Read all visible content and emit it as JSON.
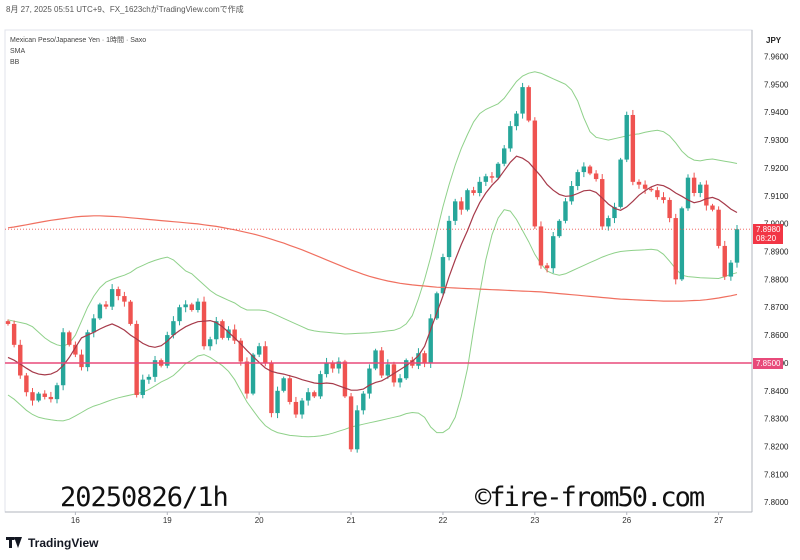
{
  "header": {
    "caption": "8月 27, 2025 05:51 UTC+9、FX_1623chがTradingView.comで作成"
  },
  "legend": {
    "symbol": "Mexican Peso/Japanese Yen · 1時間 · Saxo",
    "ind1": "SMA",
    "ind2": "BB"
  },
  "currency": "JPY",
  "overlay": {
    "date_text": "20250826/1h",
    "copyright_text": "©fire-from50.com"
  },
  "footer": {
    "brand": "TradingView",
    "logo_icon": "tradingview-logo-icon"
  },
  "price_tags": {
    "last": {
      "price": "7.8980",
      "countdown": "08:20",
      "color": "#f23645"
    },
    "level": {
      "price": "7.8500",
      "color": "#e84a7a"
    }
  },
  "colors": {
    "up": "#26a69a",
    "down": "#ef5350",
    "sma_fast": "#a63a4a",
    "sma_slow": "#f07060",
    "bb": "#8fd18a",
    "level_line": "#e84a7a"
  },
  "chart_data": {
    "type": "candlestick",
    "y_ticks": [
      "7.9600",
      "7.9500",
      "7.9400",
      "7.9300",
      "7.9200",
      "7.9100",
      "7.9000",
      "7.8900",
      "7.8800",
      "7.8700",
      "7.8600",
      "7.8500",
      "7.8400",
      "7.8300",
      "7.8200",
      "7.8100",
      "7.8000"
    ],
    "ylim": [
      7.7965,
      7.9695
    ],
    "x_ticks": [
      {
        "label": "16",
        "i": 11
      },
      {
        "label": "19",
        "i": 26
      },
      {
        "label": "20",
        "i": 41
      },
      {
        "label": "21",
        "i": 56
      },
      {
        "label": "22",
        "i": 71
      },
      {
        "label": "23",
        "i": 86
      },
      {
        "label": "26",
        "i": 101
      },
      {
        "label": "27",
        "i": 116
      }
    ],
    "n_bars": 120,
    "horizontal_level": 7.85,
    "close": [
      7.864,
      7.8565,
      7.8455,
      7.8395,
      7.8365,
      7.839,
      7.8378,
      7.837,
      7.842,
      7.861,
      7.8565,
      7.853,
      7.8485,
      7.861,
      7.866,
      7.871,
      7.8702,
      7.8765,
      7.874,
      7.872,
      7.864,
      7.8385,
      7.844,
      7.845,
      7.851,
      7.849,
      7.86,
      7.865,
      7.87,
      7.871,
      7.869,
      7.872,
      7.856,
      7.8585,
      7.865,
      7.859,
      7.862,
      7.858,
      7.8505,
      7.839,
      7.853,
      7.856,
      7.85,
      7.832,
      7.84,
      7.8445,
      7.836,
      7.8315,
      7.8365,
      7.8395,
      7.838,
      7.846,
      7.85,
      7.848,
      7.8505,
      7.838,
      7.819,
      7.833,
      7.839,
      7.848,
      7.8545,
      7.8455,
      7.8495,
      7.843,
      7.8445,
      7.851,
      7.849,
      7.8535,
      7.85,
      7.866,
      7.875,
      7.888,
      7.901,
      7.908,
      7.905,
      7.912,
      7.911,
      7.915,
      7.917,
      7.9165,
      7.9215,
      7.927,
      7.935,
      7.9395,
      7.949,
      7.937,
      7.899,
      7.885,
      7.884,
      7.8955,
      7.901,
      7.908,
      7.9135,
      7.9185,
      7.9205,
      7.918,
      7.916,
      7.899,
      7.902,
      7.906,
      7.923,
      7.939,
      7.915,
      7.914,
      7.9125,
      7.912,
      7.9095,
      7.9085,
      7.902,
      7.88,
      7.9055,
      7.9165,
      7.911,
      7.914,
      7.9065,
      7.905,
      7.892,
      7.881,
      7.886,
      7.898
    ],
    "sma_fast": [
      7.852,
      7.851,
      7.8496,
      7.8481,
      7.8468,
      7.846,
      7.8457,
      7.846,
      7.847,
      7.849,
      7.852,
      7.8555,
      7.859,
      7.86,
      7.861,
      7.8622,
      7.8632,
      7.864,
      7.863,
      7.8618,
      7.86,
      7.8586,
      7.857,
      7.856,
      7.8556,
      7.8562,
      7.8578,
      7.86,
      7.8616,
      7.863,
      7.864,
      7.8648,
      7.865,
      7.8652,
      7.8645,
      7.863,
      7.861,
      7.859,
      7.8568,
      7.8545,
      7.8523,
      7.8502,
      7.8482,
      7.847,
      7.8464,
      7.846,
      7.8454,
      7.8448,
      7.844,
      7.8434,
      7.8428,
      7.8426,
      7.8428,
      7.8426,
      7.8418,
      7.841,
      7.8402,
      7.8402,
      7.8406,
      7.842,
      7.843,
      7.8436,
      7.8448,
      7.8462,
      7.8476,
      7.849,
      7.8506,
      7.8526,
      7.856,
      7.862,
      7.868,
      7.874,
      7.881,
      7.887,
      7.8925,
      7.8975,
      7.903,
      7.9075,
      7.911,
      7.9138,
      7.916,
      7.919,
      7.922,
      7.9242,
      7.9235,
      7.922,
      7.9195,
      7.917,
      7.914,
      7.912,
      7.9105,
      7.9098,
      7.91,
      7.9108,
      7.9118,
      7.912,
      7.9112,
      7.9092,
      7.907,
      7.9055,
      7.9048,
      7.906,
      7.908,
      7.9102,
      7.9118,
      7.9132,
      7.914,
      7.9136,
      7.9125,
      7.911,
      7.9098,
      7.9085,
      7.9075,
      7.908,
      7.909,
      7.9094,
      7.9086,
      7.907,
      7.9052,
      7.904
    ],
    "sma_slow": [
      7.8985,
      7.8988,
      7.8992,
      7.8996,
      7.9,
      7.9004,
      7.9008,
      7.9012,
      7.9015,
      7.9018,
      7.9021,
      7.9024,
      7.9026,
      7.9027,
      7.9028,
      7.9028,
      7.9027,
      7.9026,
      7.9025,
      7.9023,
      7.9021,
      7.9019,
      7.9017,
      7.9015,
      7.9013,
      7.9011,
      7.9009,
      7.9007,
      7.9005,
      7.9003,
      7.9001,
      7.8999,
      7.8996,
      7.8993,
      7.899,
      7.8986,
      7.8982,
      7.8978,
      7.8973,
      7.8968,
      7.8963,
      7.8957,
      7.8951,
      7.8944,
      7.8937,
      7.893,
      7.8922,
      7.8914,
      7.8906,
      7.8897,
      7.8888,
      7.8879,
      7.887,
      7.8861,
      7.8852,
      7.8843,
      7.8834,
      7.8826,
      7.8818,
      7.8811,
      7.8805,
      7.8799,
      7.8794,
      7.879,
      7.8786,
      7.8783,
      7.878,
      7.8778,
      7.8776,
      7.8774,
      7.8772,
      7.8771,
      7.877,
      7.8769,
      7.8768,
      7.8767,
      7.8766,
      7.8765,
      7.8764,
      7.8763,
      7.8762,
      7.8761,
      7.876,
      7.8759,
      7.8758,
      7.8757,
      7.8756,
      7.8755,
      7.8753,
      7.8751,
      7.8749,
      7.8747,
      7.8745,
      7.8743,
      7.8741,
      7.8739,
      7.8737,
      7.8735,
      7.8733,
      7.8731,
      7.8729,
      7.8728,
      7.8727,
      7.8726,
      7.8725,
      7.8724,
      7.8723,
      7.8722,
      7.8722,
      7.8722,
      7.8722,
      7.8723,
      7.8724,
      7.8725,
      7.8727,
      7.873,
      7.8733,
      7.8737,
      7.8741,
      7.8746
    ],
    "bb_upper": [
      7.8655,
      7.865,
      7.8645,
      7.864,
      7.863,
      7.861,
      7.859,
      7.8575,
      7.8565,
      7.856,
      7.857,
      7.86,
      7.865,
      7.87,
      7.874,
      7.877,
      7.879,
      7.88,
      7.8808,
      7.8815,
      7.8825,
      7.884,
      7.885,
      7.886,
      7.8868,
      7.8875,
      7.888,
      7.887,
      7.885,
      7.883,
      7.882,
      7.88,
      7.878,
      7.876,
      7.8745,
      7.8735,
      7.8725,
      7.8715,
      7.87,
      7.869,
      7.869,
      7.869,
      7.8688,
      7.868,
      7.867,
      7.866,
      7.865,
      7.864,
      7.863,
      7.862,
      7.8615,
      7.8612,
      7.861,
      7.8608,
      7.8606,
      7.8604,
      7.8605,
      7.8606,
      7.8607,
      7.8608,
      7.861,
      7.8612,
      7.8615,
      7.8617,
      7.8625,
      7.864,
      7.867,
      7.873,
      7.88,
      7.888,
      7.897,
      7.906,
      7.914,
      7.921,
      7.927,
      7.932,
      7.9365,
      7.9395,
      7.941,
      7.942,
      7.943,
      7.945,
      7.948,
      7.951,
      7.953,
      7.954,
      7.9545,
      7.954,
      7.953,
      7.952,
      7.951,
      7.95,
      7.948,
      7.944,
      7.938,
      7.933,
      7.931,
      7.9305,
      7.93,
      7.9305,
      7.931,
      7.9315,
      7.932,
      7.9322,
      7.9328,
      7.9332,
      7.9335,
      7.933,
      7.9315,
      7.929,
      7.926,
      7.924,
      7.9228,
      7.9225,
      7.923,
      7.9232,
      7.9228,
      7.9224,
      7.922,
      7.9216
    ],
    "bb_lower": [
      7.8385,
      7.837,
      7.835,
      7.833,
      7.8315,
      7.8305,
      7.83,
      7.8296,
      7.8293,
      7.8292,
      7.8298,
      7.831,
      7.8322,
      7.8335,
      7.8345,
      7.8352,
      7.836,
      7.8368,
      7.8375,
      7.838,
      7.8385,
      7.839,
      7.8395,
      7.8405,
      7.8418,
      7.8432,
      7.8442,
      7.8455,
      7.8475,
      7.8498,
      7.851,
      7.8525,
      7.853,
      7.852,
      7.8505,
      7.849,
      7.847,
      7.844,
      7.84,
      7.836,
      7.833,
      7.83,
      7.8275,
      7.826,
      7.825,
      7.8245,
      7.824,
      7.8238,
      7.8236,
      7.8235,
      7.8236,
      7.8238,
      7.8242,
      7.8248,
      7.8255,
      7.8262,
      7.827,
      7.8275,
      7.828,
      7.8285,
      7.829,
      7.8295,
      7.83,
      7.8305,
      7.831,
      7.8318,
      7.8322,
      7.832,
      7.8305,
      7.827,
      7.825,
      7.825,
      7.8265,
      7.8305,
      7.838,
      7.848,
      7.862,
      7.875,
      7.887,
      7.896,
      7.902,
      7.905,
      7.9045,
      7.9015,
      7.8975,
      7.8935,
      7.889,
      7.8855,
      7.883,
      7.882,
      7.8815,
      7.882,
      7.883,
      7.884,
      7.885,
      7.886,
      7.887,
      7.888,
      7.8888,
      7.8895,
      7.89,
      7.8902,
      7.8904,
      7.8905,
      7.8906,
      7.8908,
      7.8905,
      7.889,
      7.8865,
      7.8838,
      7.8815,
      7.881,
      7.8808,
      7.8806,
      7.8805,
      7.8804,
      7.8803,
      7.881,
      7.8818,
      7.8824
    ]
  }
}
